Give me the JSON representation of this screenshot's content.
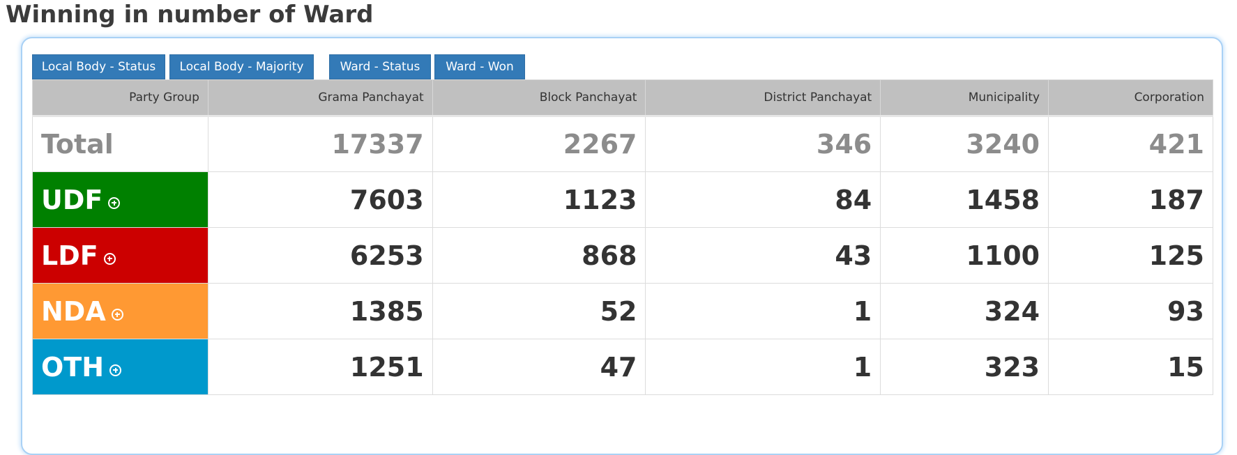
{
  "title": "Winning in number of Ward",
  "tabs": [
    {
      "label": "Local Body - Status"
    },
    {
      "label": "Local Body - Majority"
    },
    {
      "label": "Ward - Status"
    },
    {
      "label": "Ward - Won"
    }
  ],
  "table": {
    "headers": [
      "Party Group",
      "Grama Panchayat",
      "Block Panchayat",
      "District Panchayat",
      "Municipality",
      "Corporation"
    ],
    "total": {
      "label": "Total",
      "values": [
        "17337",
        "2267",
        "346",
        "3240",
        "421"
      ]
    },
    "rows": [
      {
        "label": "UDF",
        "color": "#008000",
        "values": [
          "7603",
          "1123",
          "84",
          "1458",
          "187"
        ]
      },
      {
        "label": "LDF",
        "color": "#cc0000",
        "values": [
          "6253",
          "868",
          "43",
          "1100",
          "125"
        ]
      },
      {
        "label": "NDA",
        "color": "#ff9933",
        "values": [
          "1385",
          "52",
          "1",
          "324",
          "93"
        ]
      },
      {
        "label": "OTH",
        "color": "#0099cc",
        "values": [
          "1251",
          "47",
          "1",
          "323",
          "15"
        ]
      }
    ]
  },
  "icons": {
    "expand": "plus-circle-icon"
  }
}
